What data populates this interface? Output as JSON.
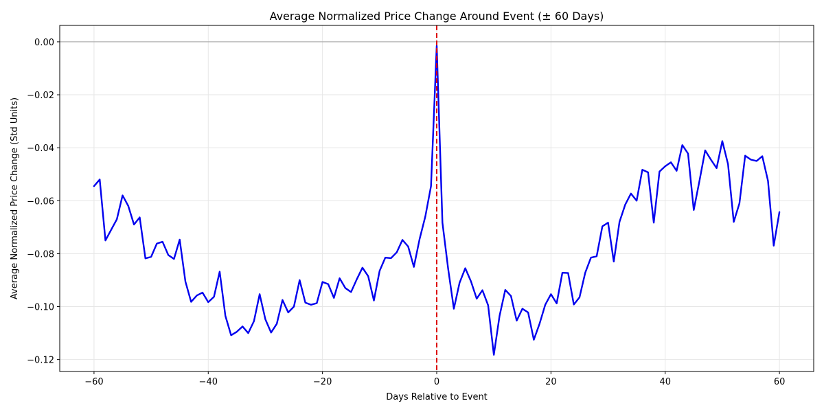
{
  "chart_data": {
    "type": "line",
    "title": "Average Normalized Price Change Around Event (± 60 Days)",
    "xlabel": "Days Relative to Event",
    "ylabel": "Average Normalized Price Change (Std Units)",
    "xlim": [
      -66,
      66
    ],
    "ylim": [
      -0.1245,
      0.0062
    ],
    "xticks": [
      -60,
      -40,
      -20,
      0,
      20,
      40,
      60
    ],
    "xtick_labels": [
      "−60",
      "−40",
      "−20",
      "0",
      "20",
      "40",
      "60"
    ],
    "yticks": [
      0.0,
      -0.02,
      -0.04,
      -0.06,
      -0.08,
      -0.1,
      -0.12
    ],
    "ytick_labels": [
      "0.00",
      "−0.02",
      "−0.04",
      "−0.06",
      "−0.08",
      "−0.10",
      "−0.12"
    ],
    "grid": true,
    "colors": {
      "series": "#0000ee",
      "event_line": "#dd0000",
      "zero_line": "#b0b0b0"
    },
    "reference_lines": {
      "horizontal_y": 0,
      "vertical_x": 0
    },
    "x": [
      -60,
      -59,
      -58,
      -57,
      -56,
      -55,
      -54,
      -53,
      -52,
      -51,
      -50,
      -49,
      -48,
      -47,
      -46,
      -45,
      -44,
      -43,
      -42,
      -41,
      -40,
      -39,
      -38,
      -37,
      -36,
      -35,
      -34,
      -33,
      -32,
      -31,
      -30,
      -29,
      -28,
      -27,
      -26,
      -25,
      -24,
      -23,
      -22,
      -21,
      -20,
      -19,
      -18,
      -17,
      -16,
      -15,
      -14,
      -13,
      -12,
      -11,
      -10,
      -9,
      -8,
      -7,
      -6,
      -5,
      -4,
      -3,
      -2,
      -1,
      0,
      1,
      2,
      3,
      4,
      5,
      6,
      7,
      8,
      9,
      10,
      11,
      12,
      13,
      14,
      15,
      16,
      17,
      18,
      19,
      20,
      21,
      22,
      23,
      24,
      25,
      26,
      27,
      28,
      29,
      30,
      31,
      32,
      33,
      34,
      35,
      36,
      37,
      38,
      39,
      40,
      41,
      42,
      43,
      44,
      45,
      46,
      47,
      48,
      49,
      50,
      51,
      52,
      53,
      54,
      55,
      56,
      57,
      58,
      59,
      60
    ],
    "y": [
      -0.0545,
      -0.052,
      -0.075,
      -0.071,
      -0.067,
      -0.058,
      -0.062,
      -0.069,
      -0.0663,
      -0.0818,
      -0.0812,
      -0.0762,
      -0.0755,
      -0.0805,
      -0.082,
      -0.0747,
      -0.0905,
      -0.0982,
      -0.0958,
      -0.0947,
      -0.0983,
      -0.0963,
      -0.0868,
      -0.1035,
      -0.1108,
      -0.1095,
      -0.1075,
      -0.11,
      -0.1055,
      -0.0953,
      -0.1048,
      -0.1098,
      -0.1065,
      -0.0975,
      -0.1022,
      -0.1,
      -0.09,
      -0.0985,
      -0.0993,
      -0.0987,
      -0.0907,
      -0.0915,
      -0.0967,
      -0.0893,
      -0.093,
      -0.0945,
      -0.0897,
      -0.0853,
      -0.0885,
      -0.0977,
      -0.0865,
      -0.0815,
      -0.0817,
      -0.0795,
      -0.0748,
      -0.0773,
      -0.085,
      -0.0745,
      -0.066,
      -0.0545,
      -0.0015,
      -0.0683,
      -0.0857,
      -0.1008,
      -0.091,
      -0.0855,
      -0.0905,
      -0.097,
      -0.0938,
      -0.0995,
      -0.1182,
      -0.1035,
      -0.0937,
      -0.096,
      -0.1053,
      -0.1008,
      -0.1022,
      -0.1125,
      -0.1065,
      -0.0993,
      -0.0953,
      -0.0988,
      -0.0872,
      -0.0873,
      -0.0992,
      -0.0965,
      -0.0872,
      -0.0815,
      -0.081,
      -0.0697,
      -0.0683,
      -0.083,
      -0.068,
      -0.0615,
      -0.0573,
      -0.06,
      -0.0483,
      -0.0493,
      -0.0683,
      -0.049,
      -0.047,
      -0.0455,
      -0.0487,
      -0.039,
      -0.0422,
      -0.0635,
      -0.0525,
      -0.041,
      -0.0445,
      -0.0477,
      -0.0375,
      -0.0462,
      -0.068,
      -0.061,
      -0.043,
      -0.0445,
      -0.045,
      -0.0432,
      -0.0525,
      -0.077,
      -0.0643
    ]
  }
}
